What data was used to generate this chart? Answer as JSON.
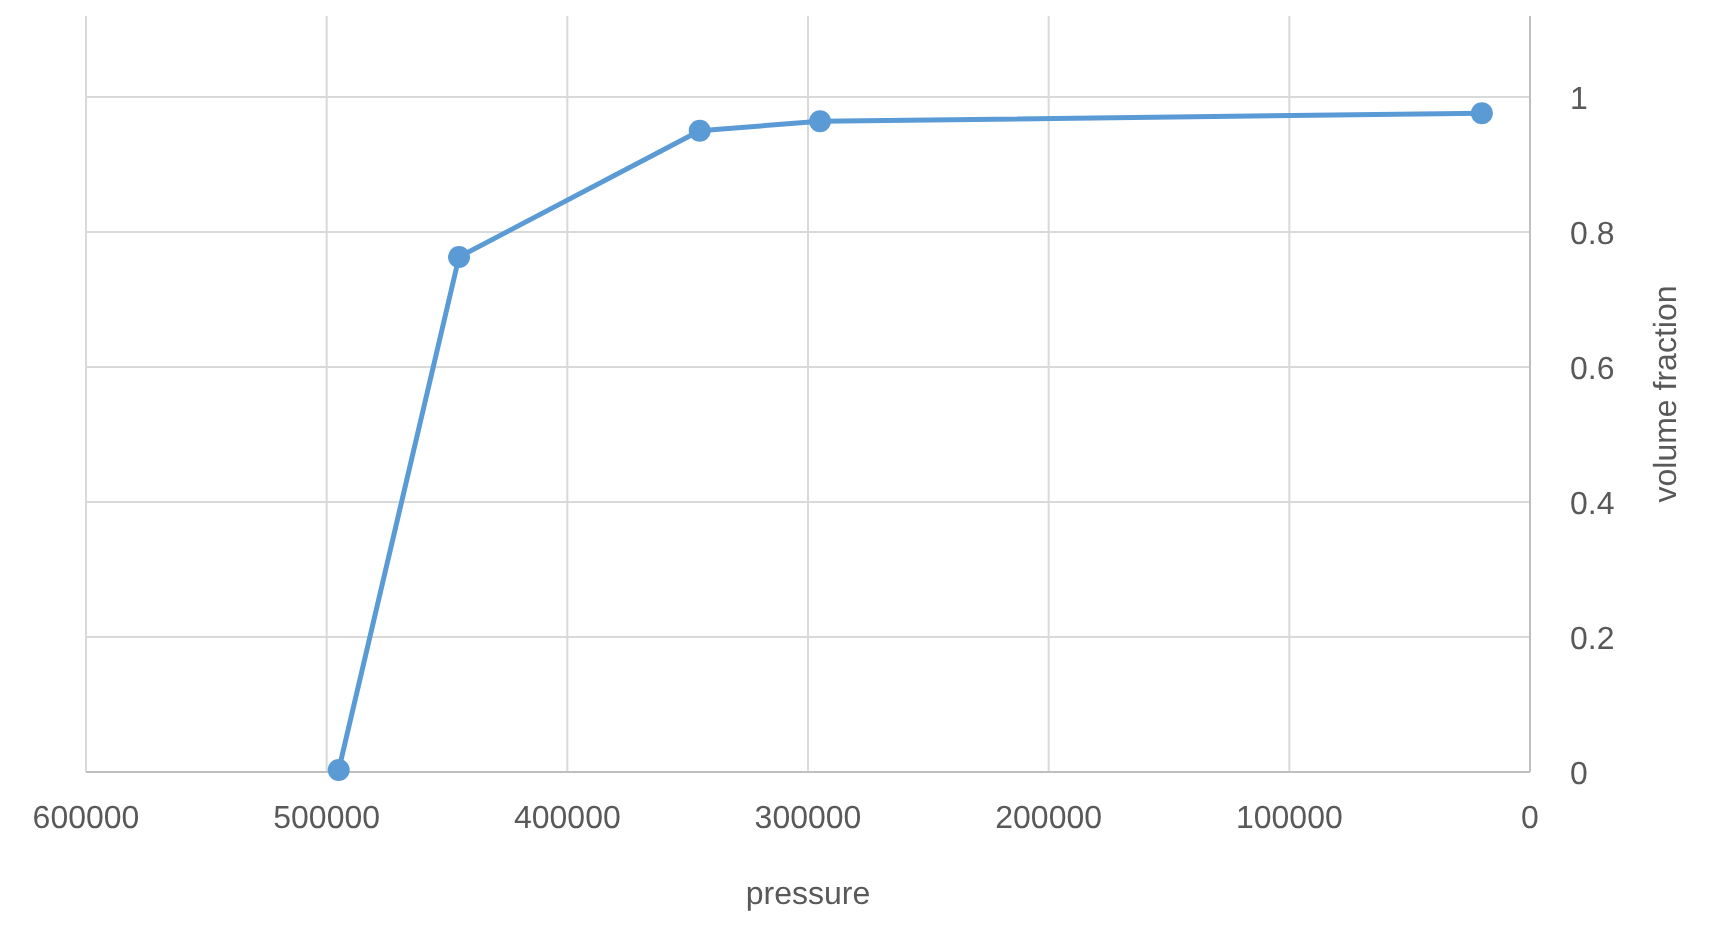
{
  "chart_data": {
    "type": "line",
    "xlabel": "pressure",
    "ylabel": "volume fraction",
    "x": [
      495000,
      445000,
      345000,
      295000,
      20000
    ],
    "series": [
      {
        "color": "#5b9bd5",
        "values": [
          0.003,
          0.763,
          0.95,
          0.964,
          0.976
        ]
      }
    ],
    "xlim": [
      600000,
      0
    ],
    "xticks": [
      600000,
      500000,
      400000,
      300000,
      200000,
      100000,
      0
    ],
    "ylim": [
      0,
      1.12
    ],
    "yticks": [
      0,
      0.2,
      0.4,
      0.6,
      0.8,
      1
    ],
    "grid": true,
    "marker": "circle",
    "line_style": "solid"
  }
}
